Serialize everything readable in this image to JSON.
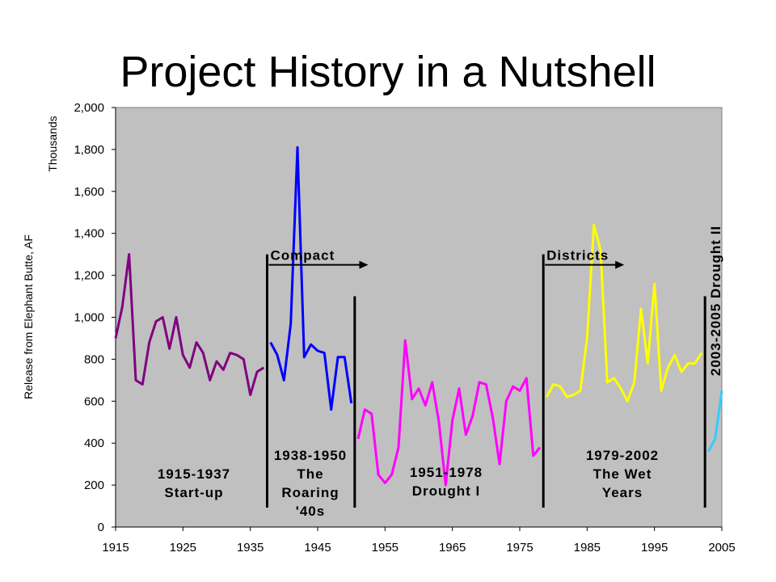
{
  "title": "Project History in a Nutshell",
  "colors": {
    "plot_bg": "#c0c0c0",
    "period1": "#800080",
    "period2": "#0000ff",
    "period3": "#ff00ff",
    "period4": "#ffff00",
    "period5": "#33ccff"
  },
  "chart_data": {
    "type": "line",
    "title": "Project History in a Nutshell",
    "ylabel": "Release from Elephant Butte, AF",
    "yunit": "Thousands",
    "xlim": [
      1915,
      2005
    ],
    "ylim": [
      0,
      2000
    ],
    "xticks": [
      "1915",
      "1925",
      "1935",
      "1945",
      "1955",
      "1965",
      "1975",
      "1985",
      "1995",
      "2005"
    ],
    "yticks": [
      "0",
      "200",
      "400",
      "600",
      "800",
      "1,000",
      "1,200",
      "1,400",
      "1,600",
      "1,800",
      "2,000"
    ],
    "grid": false,
    "series": [
      {
        "color": "#800080",
        "x": [
          1915,
          1916,
          1917,
          1918,
          1919,
          1920,
          1921,
          1922,
          1923,
          1924,
          1925,
          1926,
          1927,
          1928,
          1929,
          1930,
          1931,
          1932,
          1933,
          1934,
          1935,
          1936,
          1937
        ],
        "y": [
          900,
          1050,
          1300,
          700,
          680,
          880,
          980,
          1000,
          850,
          1000,
          820,
          760,
          880,
          830,
          700,
          790,
          750,
          830,
          820,
          800,
          630,
          740,
          760
        ]
      },
      {
        "color": "#0000ff",
        "x": [
          1938,
          1939,
          1940,
          1941,
          1942,
          1943,
          1944,
          1945,
          1946,
          1947,
          1948,
          1949,
          1950
        ],
        "y": [
          880,
          820,
          700,
          970,
          1810,
          810,
          870,
          840,
          830,
          560,
          810,
          810,
          590
        ]
      },
      {
        "color": "#ff00ff",
        "x": [
          1951,
          1952,
          1953,
          1954,
          1955,
          1956,
          1957,
          1958,
          1959,
          1960,
          1961,
          1962,
          1963,
          1964,
          1965,
          1966,
          1967,
          1968,
          1969,
          1970,
          1971,
          1972,
          1973,
          1974,
          1975,
          1976,
          1977,
          1978
        ],
        "y": [
          420,
          560,
          540,
          250,
          210,
          250,
          380,
          890,
          610,
          660,
          580,
          690,
          500,
          200,
          510,
          660,
          440,
          530,
          690,
          680,
          520,
          300,
          600,
          670,
          650,
          710,
          340,
          380
        ]
      },
      {
        "color": "#ffff00",
        "x": [
          1979,
          1980,
          1981,
          1982,
          1983,
          1984,
          1985,
          1986,
          1987,
          1988,
          1989,
          1990,
          1991,
          1992,
          1993,
          1994,
          1995,
          1996,
          1997,
          1998,
          1999,
          2000,
          2001,
          2002
        ],
        "y": [
          620,
          680,
          670,
          620,
          630,
          650,
          900,
          1440,
          1320,
          690,
          710,
          660,
          600,
          690,
          1040,
          780,
          1160,
          650,
          760,
          820,
          740,
          780,
          780,
          830
        ]
      },
      {
        "color": "#33ccff",
        "x": [
          2003,
          2004,
          2005
        ],
        "y": [
          360,
          420,
          650
        ]
      }
    ],
    "dividers": [
      {
        "x": 1937.5,
        "y_top": 1300
      },
      {
        "x": 1950.5,
        "y_top": 1100
      },
      {
        "x": 1978.5,
        "y_top": 1300
      },
      {
        "x": 2002.5,
        "y_top": 1100
      }
    ],
    "arrows": [
      {
        "label": "Compact",
        "x_start": 1937.5,
        "x_end": 1952.5,
        "y": 1250
      },
      {
        "label": "Districts",
        "x_start": 1978.5,
        "x_end": 1990.5,
        "y": 1250
      }
    ],
    "annotations": {
      "p1": {
        "line1": "1915-1937",
        "line2": "Start-up"
      },
      "p2": {
        "line1": "1938-1950",
        "line2": "The",
        "line3": "Roaring",
        "line4": "'40s"
      },
      "p3": {
        "line1": "1951-1978",
        "line2": "Drought I"
      },
      "p4": {
        "line1": "1979-2002",
        "line2": "The Wet",
        "line3": "Years"
      },
      "p5": "2003-2005 Drought II"
    }
  }
}
